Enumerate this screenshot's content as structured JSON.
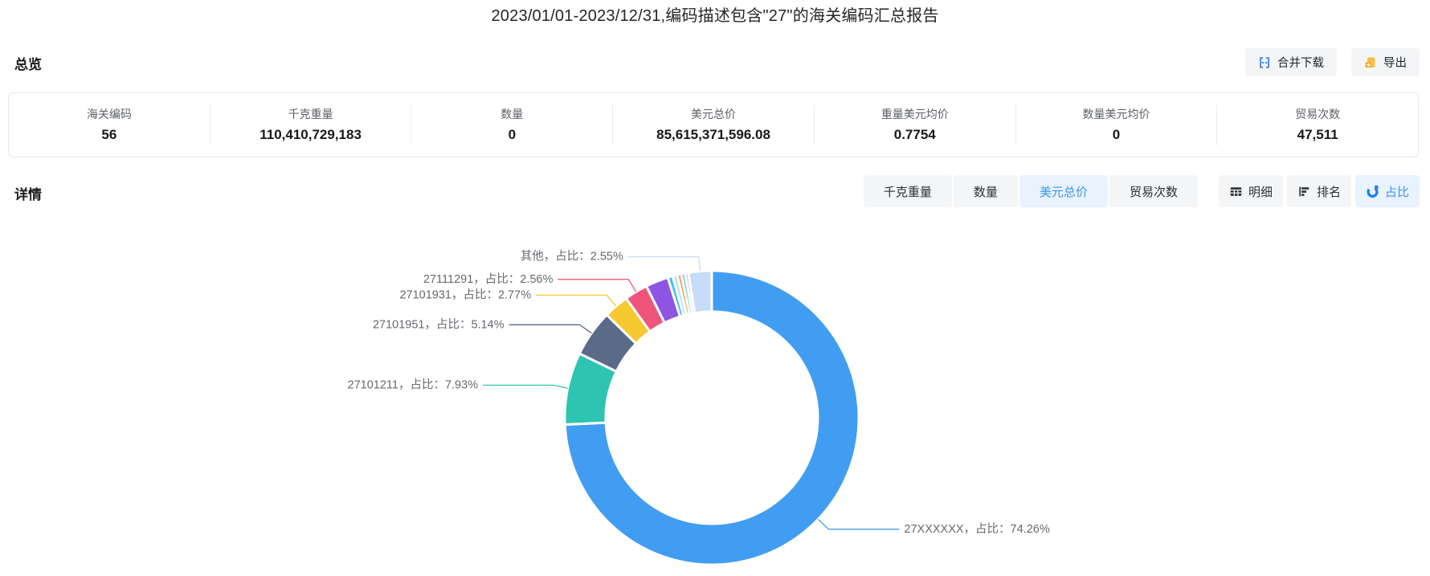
{
  "page": {
    "title": "2023/01/01-2023/12/31,编码描述包含\"27\"的海关编码汇总报告"
  },
  "overview": {
    "heading": "总览",
    "buttons": {
      "merge_download": "合并下载",
      "export": "导出"
    },
    "stats": [
      {
        "label": "海关编码",
        "value": "56"
      },
      {
        "label": "千克重量",
        "value": "110,410,729,183"
      },
      {
        "label": "数量",
        "value": "0"
      },
      {
        "label": "美元总价",
        "value": "85,615,371,596.08"
      },
      {
        "label": "重量美元均价",
        "value": "0.7754"
      },
      {
        "label": "数量美元均价",
        "value": "0"
      },
      {
        "label": "贸易次数",
        "value": "47,511"
      }
    ]
  },
  "details": {
    "heading": "详情",
    "metric_tabs": [
      {
        "label": "千克重量",
        "active": false
      },
      {
        "label": "数量",
        "active": false
      },
      {
        "label": "美元总价",
        "active": true
      },
      {
        "label": "贸易次数",
        "active": false
      }
    ],
    "view_tabs": [
      {
        "label": "明细",
        "icon": "table-icon",
        "active": false
      },
      {
        "label": "排名",
        "icon": "ranking-icon",
        "active": false
      },
      {
        "label": "占比",
        "icon": "pie-icon",
        "active": true
      }
    ]
  },
  "chart_data": {
    "type": "pie",
    "shape": "donut",
    "metric": "美元总价",
    "value_unit": "percent",
    "start_angle_deg_clockwise_from_top": 0,
    "slices": [
      {
        "name": "27XXXXXX",
        "pct": 74.26,
        "color": "#419df1",
        "labeled": true,
        "label": "27XXXXXX，占比：74.26%"
      },
      {
        "name": "27101211",
        "pct": 7.93,
        "color": "#2dc5b2",
        "labeled": true,
        "label": "27101211，占比：7.93%"
      },
      {
        "name": "27101951",
        "pct": 5.14,
        "color": "#5a6a87",
        "labeled": true,
        "label": "27101951，占比：5.14%"
      },
      {
        "name": "27101931",
        "pct": 2.77,
        "color": "#f7c931",
        "labeled": true,
        "label": "27101931，占比：2.77%"
      },
      {
        "name": "27111291",
        "pct": 2.56,
        "color": "#ef557a",
        "labeled": true,
        "label": "27111291，占比：2.56%"
      },
      {
        "name": "",
        "pct": 2.5,
        "color": "#8d55e2",
        "labeled": false,
        "label": ""
      },
      {
        "name": "",
        "pct": 0.55,
        "color": "#3fc1e9",
        "labeled": false,
        "label": ""
      },
      {
        "name": "",
        "pct": 0.5,
        "color": "#bbdff5",
        "labeled": false,
        "label": ""
      },
      {
        "name": "",
        "pct": 0.45,
        "color": "#f6a04d",
        "labeled": false,
        "label": ""
      },
      {
        "name": "",
        "pct": 0.42,
        "color": "#6fd3c3",
        "labeled": false,
        "label": ""
      },
      {
        "name": "",
        "pct": 0.37,
        "color": "#f4b8d0",
        "labeled": false,
        "label": ""
      },
      {
        "name": "其他",
        "pct": 2.55,
        "color": "#c6dcf8",
        "labeled": true,
        "label": "其他，占比：2.55%"
      }
    ],
    "label_text_color": "#65696e"
  },
  "colors": {
    "accent_blue": "#3e95ee",
    "active_tab_bg": "#e8f3fe",
    "inactive_tab_bg": "#f4f5f7",
    "export_icon_orange": "#f5a623",
    "merge_icon_blue": "#3a7af0"
  }
}
